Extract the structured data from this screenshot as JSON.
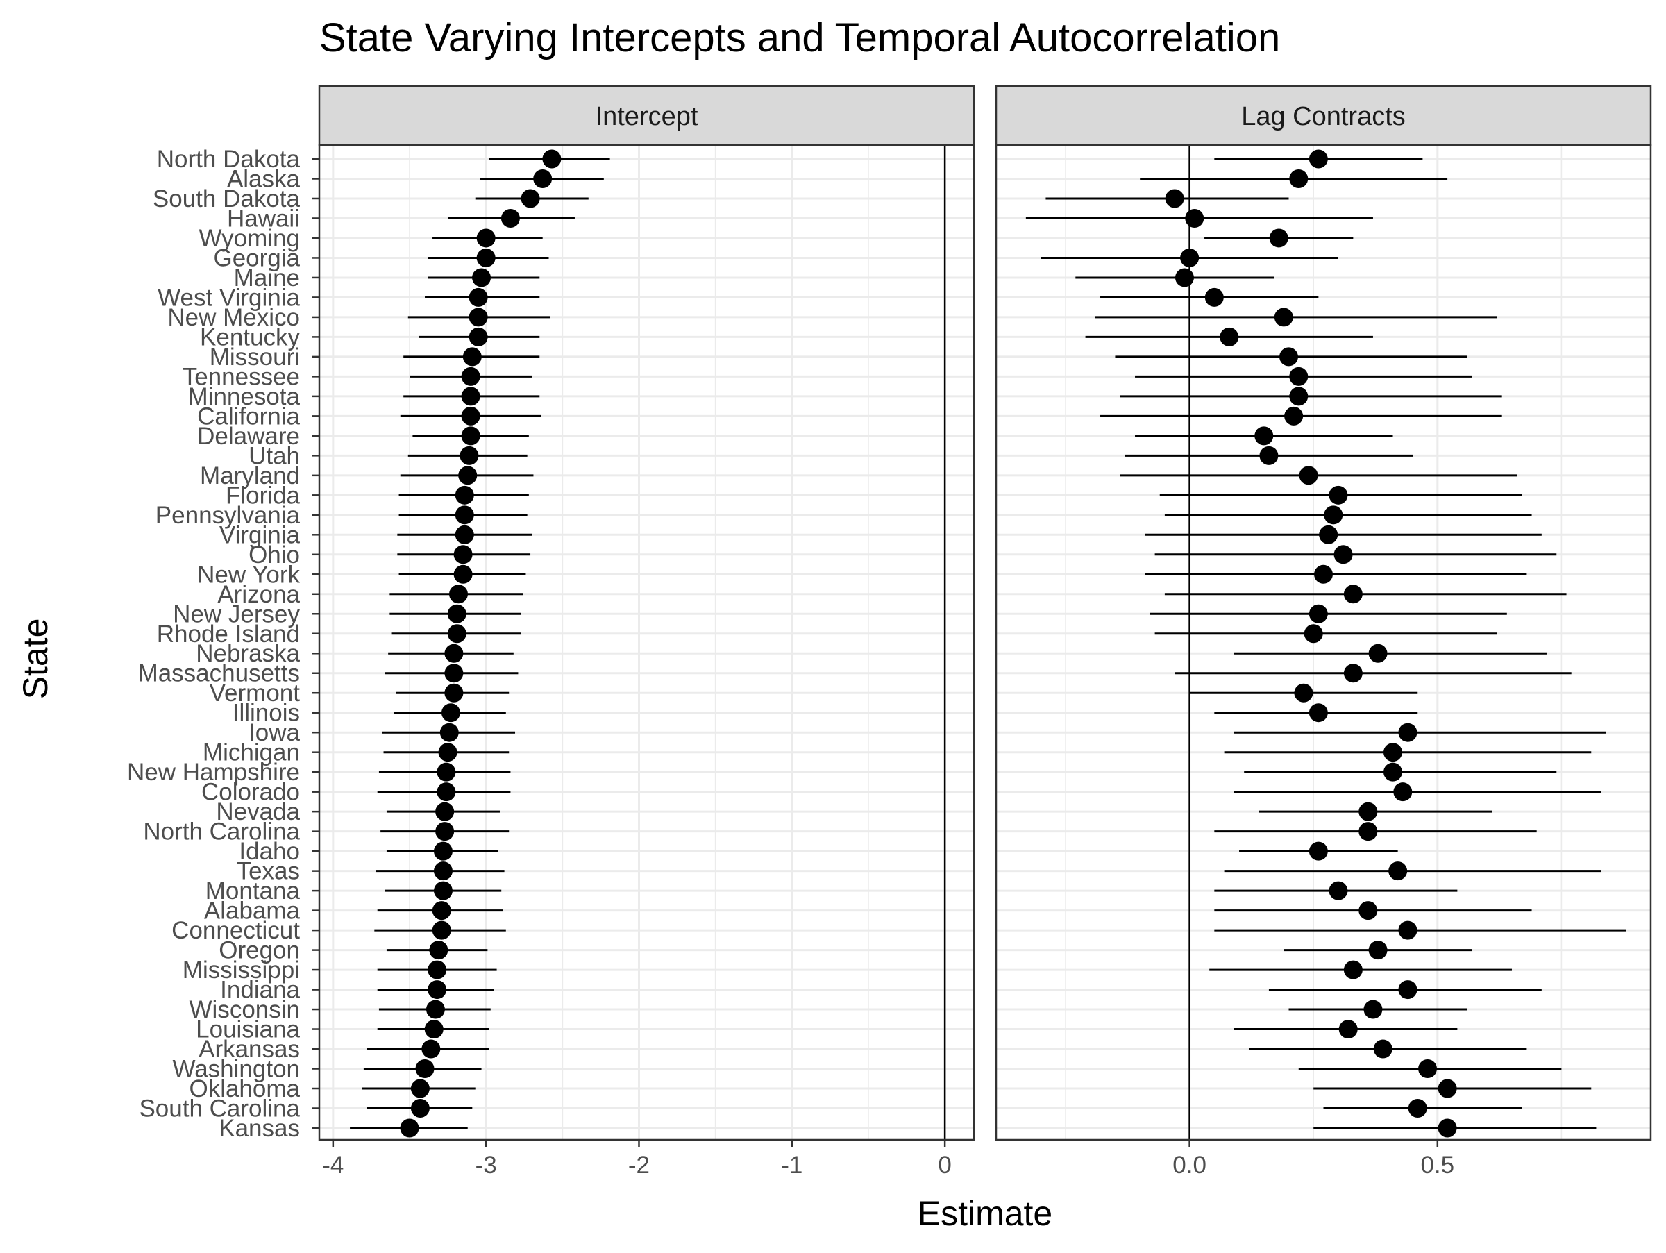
{
  "chart_data": {
    "type": "scatter",
    "title": "State Varying Intercepts and Temporal Autocorrelation",
    "xlabel": "Estimate",
    "ylabel": "State",
    "grid": true,
    "states": [
      "North Dakota",
      "Alaska",
      "South Dakota",
      "Hawaii",
      "Wyoming",
      "Georgia",
      "Maine",
      "West Virginia",
      "New Mexico",
      "Kentucky",
      "Missouri",
      "Tennessee",
      "Minnesota",
      "California",
      "Delaware",
      "Utah",
      "Maryland",
      "Florida",
      "Pennsylvania",
      "Virginia",
      "Ohio",
      "New York",
      "Arizona",
      "New Jersey",
      "Rhode Island",
      "Nebraska",
      "Massachusetts",
      "Vermont",
      "Illinois",
      "Iowa",
      "Michigan",
      "New Hampshire",
      "Colorado",
      "Nevada",
      "North Carolina",
      "Idaho",
      "Texas",
      "Montana",
      "Alabama",
      "Connecticut",
      "Oregon",
      "Mississippi",
      "Indiana",
      "Wisconsin",
      "Louisiana",
      "Arkansas",
      "Washington",
      "Oklahoma",
      "South Carolina",
      "Kansas"
    ],
    "panels": [
      {
        "strip": "Intercept",
        "xlim": [
          -4.09,
          0.19
        ],
        "ticks": [
          -4,
          -3,
          -2,
          -1,
          0
        ],
        "tick_labels": [
          "-4",
          "-3",
          "-2",
          "-1",
          "0"
        ],
        "ref_line": 0,
        "estimate": [
          -2.57,
          -2.63,
          -2.71,
          -2.84,
          -3.0,
          -3.0,
          -3.03,
          -3.05,
          -3.05,
          -3.05,
          -3.09,
          -3.1,
          -3.1,
          -3.1,
          -3.1,
          -3.11,
          -3.12,
          -3.14,
          -3.14,
          -3.14,
          -3.15,
          -3.15,
          -3.18,
          -3.19,
          -3.19,
          -3.21,
          -3.21,
          -3.21,
          -3.23,
          -3.24,
          -3.25,
          -3.26,
          -3.26,
          -3.27,
          -3.27,
          -3.28,
          -3.28,
          -3.28,
          -3.29,
          -3.29,
          -3.31,
          -3.32,
          -3.32,
          -3.33,
          -3.34,
          -3.36,
          -3.4,
          -3.43,
          -3.43,
          -3.5
        ],
        "lower": [
          -2.98,
          -3.04,
          -3.07,
          -3.25,
          -3.35,
          -3.38,
          -3.38,
          -3.4,
          -3.51,
          -3.44,
          -3.54,
          -3.5,
          -3.54,
          -3.56,
          -3.48,
          -3.51,
          -3.56,
          -3.57,
          -3.57,
          -3.58,
          -3.58,
          -3.57,
          -3.63,
          -3.63,
          -3.62,
          -3.64,
          -3.66,
          -3.59,
          -3.6,
          -3.68,
          -3.67,
          -3.7,
          -3.71,
          -3.65,
          -3.69,
          -3.65,
          -3.72,
          -3.66,
          -3.71,
          -3.73,
          -3.65,
          -3.71,
          -3.71,
          -3.7,
          -3.71,
          -3.78,
          -3.8,
          -3.81,
          -3.78,
          -3.89
        ],
        "upper": [
          -2.19,
          -2.23,
          -2.33,
          -2.42,
          -2.63,
          -2.59,
          -2.65,
          -2.65,
          -2.58,
          -2.65,
          -2.65,
          -2.7,
          -2.65,
          -2.64,
          -2.72,
          -2.73,
          -2.69,
          -2.72,
          -2.73,
          -2.7,
          -2.71,
          -2.74,
          -2.76,
          -2.77,
          -2.77,
          -2.82,
          -2.79,
          -2.85,
          -2.87,
          -2.81,
          -2.85,
          -2.84,
          -2.84,
          -2.91,
          -2.85,
          -2.92,
          -2.88,
          -2.9,
          -2.89,
          -2.87,
          -2.99,
          -2.93,
          -2.95,
          -2.97,
          -2.98,
          -2.98,
          -3.03,
          -3.07,
          -3.09,
          -3.12
        ]
      },
      {
        "strip": "Lag Contracts",
        "xlim": [
          -0.39,
          0.93
        ],
        "ticks": [
          0.0,
          0.5
        ],
        "tick_labels": [
          "0.0",
          "0.5"
        ],
        "ref_line": 0,
        "estimate": [
          0.26,
          0.22,
          -0.03,
          0.01,
          0.18,
          0.0,
          -0.01,
          0.05,
          0.19,
          0.08,
          0.2,
          0.22,
          0.22,
          0.21,
          0.15,
          0.16,
          0.24,
          0.3,
          0.29,
          0.28,
          0.31,
          0.27,
          0.33,
          0.26,
          0.25,
          0.38,
          0.33,
          0.23,
          0.26,
          0.44,
          0.41,
          0.41,
          0.43,
          0.36,
          0.36,
          0.26,
          0.42,
          0.3,
          0.36,
          0.44,
          0.38,
          0.33,
          0.44,
          0.37,
          0.32,
          0.39,
          0.48,
          0.52,
          0.46,
          0.52
        ],
        "lower": [
          0.05,
          -0.1,
          -0.29,
          -0.33,
          0.03,
          -0.3,
          -0.23,
          -0.18,
          -0.19,
          -0.21,
          -0.15,
          -0.11,
          -0.14,
          -0.18,
          -0.11,
          -0.13,
          -0.14,
          -0.06,
          -0.05,
          -0.09,
          -0.07,
          -0.09,
          -0.05,
          -0.08,
          -0.07,
          0.09,
          -0.03,
          0.0,
          0.05,
          0.09,
          0.07,
          0.11,
          0.09,
          0.14,
          0.05,
          0.1,
          0.07,
          0.05,
          0.05,
          0.05,
          0.19,
          0.04,
          0.16,
          0.2,
          0.09,
          0.12,
          0.22,
          0.25,
          0.27,
          0.25
        ],
        "upper": [
          0.47,
          0.52,
          0.2,
          0.37,
          0.33,
          0.3,
          0.17,
          0.26,
          0.62,
          0.37,
          0.56,
          0.57,
          0.63,
          0.63,
          0.41,
          0.45,
          0.66,
          0.67,
          0.69,
          0.71,
          0.74,
          0.68,
          0.76,
          0.64,
          0.62,
          0.72,
          0.77,
          0.46,
          0.46,
          0.84,
          0.81,
          0.74,
          0.83,
          0.61,
          0.7,
          0.42,
          0.83,
          0.54,
          0.69,
          0.88,
          0.57,
          0.65,
          0.71,
          0.56,
          0.54,
          0.68,
          0.75,
          0.81,
          0.67,
          0.82
        ]
      }
    ]
  },
  "colors": {
    "point": "#000000",
    "strip_fill": "#d9d9d9",
    "grid": "#ebebeb",
    "axis_text": "#4d4d4d",
    "panel_border": "#333333"
  }
}
